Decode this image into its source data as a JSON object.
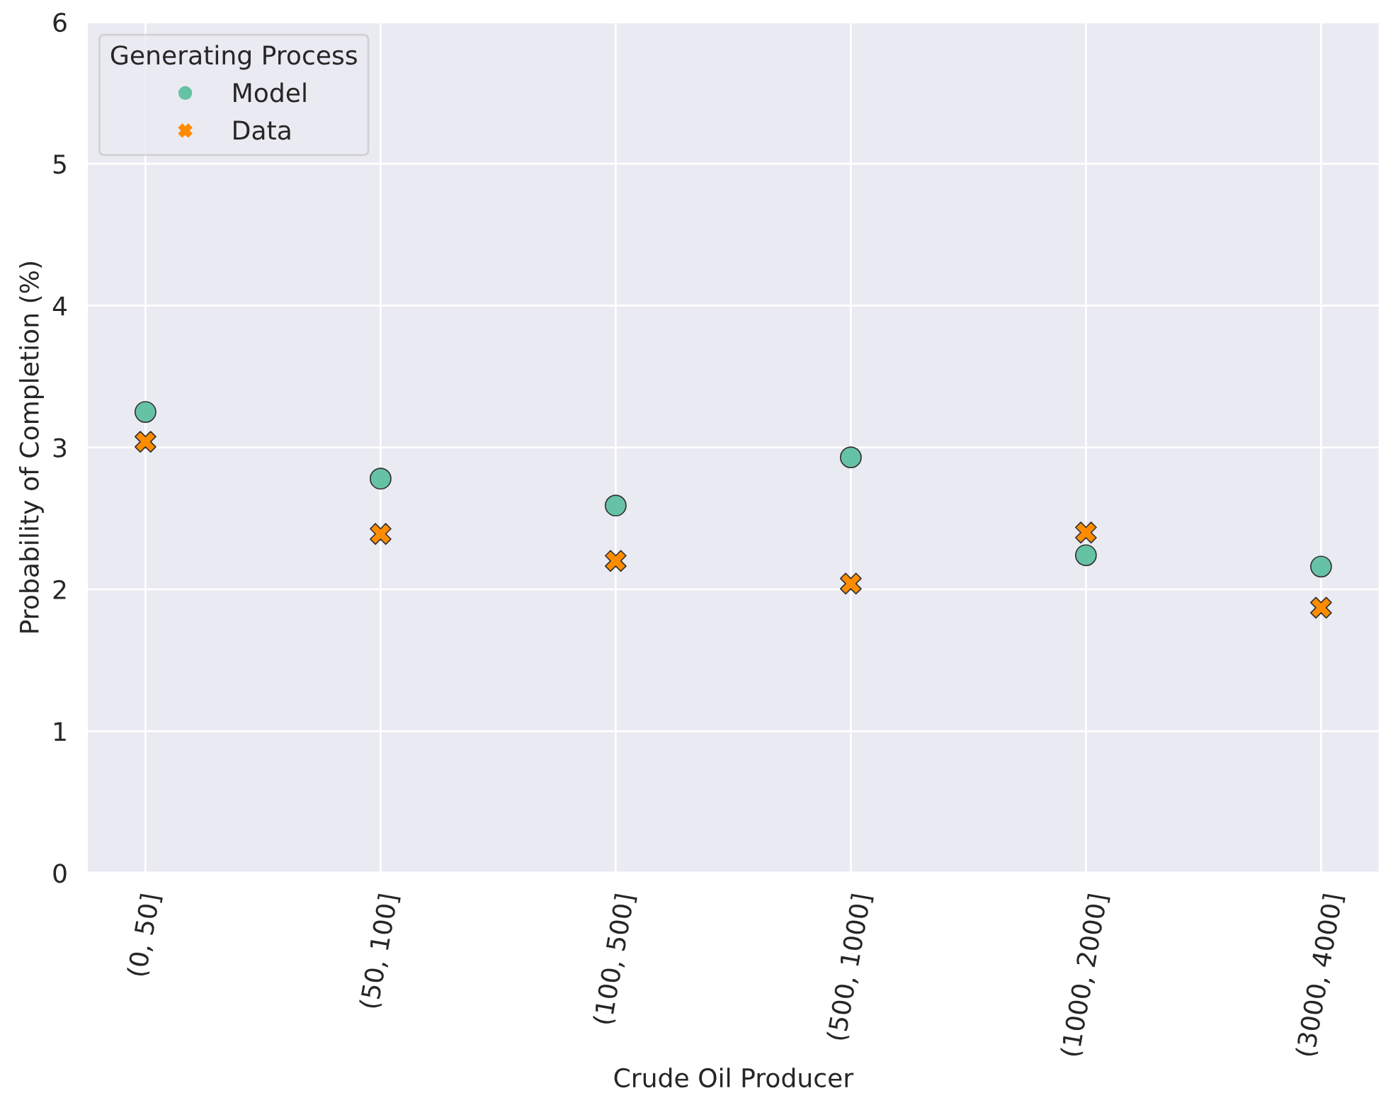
{
  "chart_data": {
    "type": "scatter",
    "xlabel": "Crude Oil Producer",
    "ylabel": "Probability of Completion (%)",
    "legend_title": "Generating Process",
    "categories": [
      "(0, 50]",
      "(50, 100]",
      "(100, 500]",
      "(500, 1000]",
      "(1000, 2000]",
      "(3000, 4000]"
    ],
    "series": [
      {
        "name": "Model",
        "color": "#66c2a5",
        "marker": "circle",
        "values": [
          3.25,
          2.78,
          2.59,
          2.93,
          2.24,
          2.16
        ]
      },
      {
        "name": "Data",
        "color": "#ff8c00",
        "marker": "cross",
        "values": [
          3.04,
          2.39,
          2.2,
          2.04,
          2.4,
          1.87
        ]
      }
    ],
    "ylim": [
      0,
      6
    ],
    "yticks": [
      0,
      1,
      2,
      3,
      4,
      5,
      6
    ],
    "grid": true,
    "legend": "top left"
  }
}
